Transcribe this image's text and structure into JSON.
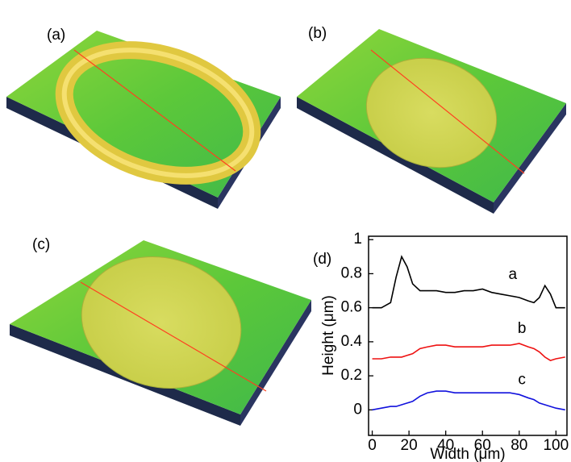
{
  "panels": [
    {
      "label": "(a)"
    },
    {
      "label": "(b)"
    },
    {
      "label": "(c)"
    }
  ],
  "chart_data": {
    "type": "line",
    "panel_label": "(d)",
    "x_label": "Width (μm)",
    "y_label": "Height (μm)",
    "x": [
      0,
      5,
      10,
      13,
      16,
      19,
      22,
      26,
      30,
      35,
      40,
      45,
      50,
      55,
      60,
      65,
      70,
      75,
      80,
      85,
      88,
      91,
      94,
      97,
      100,
      105
    ],
    "series": [
      {
        "name": "a",
        "color": "#000000",
        "values": [
          0.6,
          0.6,
          0.63,
          0.78,
          0.9,
          0.84,
          0.74,
          0.7,
          0.7,
          0.7,
          0.69,
          0.69,
          0.7,
          0.7,
          0.71,
          0.69,
          0.68,
          0.67,
          0.66,
          0.64,
          0.63,
          0.66,
          0.73,
          0.68,
          0.6,
          0.6
        ]
      },
      {
        "name": "b",
        "color": "#ee1111",
        "values": [
          0.3,
          0.3,
          0.31,
          0.31,
          0.31,
          0.32,
          0.33,
          0.36,
          0.37,
          0.38,
          0.38,
          0.37,
          0.37,
          0.37,
          0.37,
          0.38,
          0.38,
          0.38,
          0.39,
          0.37,
          0.36,
          0.34,
          0.31,
          0.29,
          0.3,
          0.31
        ]
      },
      {
        "name": "c",
        "color": "#1111dd",
        "values": [
          0.0,
          0.01,
          0.02,
          0.02,
          0.03,
          0.04,
          0.05,
          0.08,
          0.1,
          0.11,
          0.11,
          0.1,
          0.1,
          0.1,
          0.1,
          0.1,
          0.1,
          0.1,
          0.09,
          0.07,
          0.06,
          0.04,
          0.03,
          0.02,
          0.01,
          0.0
        ]
      }
    ],
    "xlim": [
      -2,
      106
    ],
    "xticks": [
      0,
      20,
      40,
      60,
      80,
      100
    ],
    "ylim": [
      -0.15,
      1.02
    ],
    "yticks": [
      0,
      0.2,
      0.4,
      0.6,
      0.8,
      1
    ]
  }
}
